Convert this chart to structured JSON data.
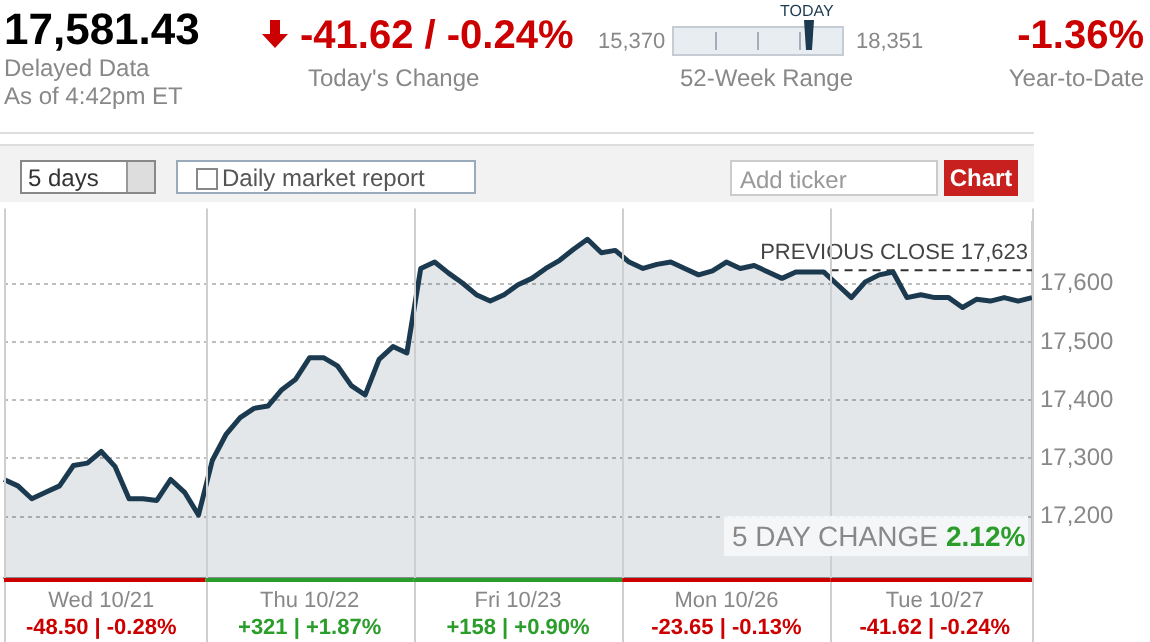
{
  "chart_data": {
    "type": "area",
    "categories": [
      null,
      null,
      null,
      null,
      null,
      null,
      null,
      "Wed 10/21",
      null,
      null,
      null,
      null,
      null,
      null,
      null,
      null,
      null,
      null,
      null,
      null,
      null,
      null,
      "Thu 10/22",
      null,
      null,
      null,
      null,
      null,
      null,
      null,
      null,
      null,
      null,
      null,
      null,
      null,
      null,
      "Fri 10/23",
      null,
      null,
      null,
      null,
      null,
      null,
      null,
      null,
      null,
      null,
      null,
      null,
      null,
      null,
      "Mon 10/26",
      null,
      null,
      null,
      null,
      null,
      null,
      null,
      null,
      null,
      null,
      null,
      null,
      null,
      null,
      "Tue 10/27",
      null,
      null,
      null,
      null,
      null,
      null,
      null
    ],
    "series": [
      {
        "color": "#1c3a4f",
        "values": [
          17264,
          17253,
          17231,
          17242,
          17253,
          17288,
          17292,
          17312,
          17286,
          17231,
          17231,
          17228,
          17264,
          17242,
          17203,
          17297,
          17342,
          17370,
          17386,
          17390,
          17418,
          17436,
          17473,
          17473,
          17459,
          17425,
          17409,
          17470,
          17492,
          17481,
          17626,
          17637,
          17618,
          17601,
          17581,
          17570,
          17581,
          17598,
          17609,
          17626,
          17640,
          17659,
          17676,
          17653,
          17657,
          17637,
          17626,
          17633,
          17637,
          17626,
          17615,
          17622,
          17637,
          17626,
          17631,
          17620,
          17609,
          17620,
          17620,
          17620,
          17598,
          17576,
          17603,
          17615,
          17620,
          17576,
          17581,
          17576,
          17576,
          17559,
          17573,
          17570,
          17576,
          17570,
          17576
        ]
      }
    ],
    "ylim": [
      17095,
      17705
    ],
    "yticks": [
      {
        "value": 17200,
        "label": "17,200"
      },
      {
        "value": 17300,
        "label": "17,300"
      },
      {
        "value": 17400,
        "label": "17,400"
      },
      {
        "value": 17500,
        "label": "17,500"
      },
      {
        "value": 17600,
        "label": "17,600"
      }
    ],
    "grid": "y",
    "legend": false,
    "marker": "none",
    "line_style": "solid",
    "ref_lines": [
      {
        "axis": "y",
        "value": 17623,
        "label": "PREVIOUS CLOSE 17,623",
        "line_style": "dashed",
        "color": "#333333"
      }
    ],
    "annotations": [
      "17,581.43",
      "Delayed Data",
      "As of 4:42pm ET",
      "-41.62 / -0.24%",
      "Today's Change",
      "15,370",
      "TODAY",
      "18,351",
      "52-Week Range",
      "-1.36%",
      "Year-to-Date",
      "5 days",
      "Daily market report",
      "Add ticker",
      "Chart",
      "5 DAY CHANGE",
      "2.12%",
      "-48.50 | -0.28%",
      "+321 | +1.87%",
      "+158 | +0.90%",
      "-23.65 | -0.13%",
      "-41.62 | -0.24%"
    ]
  }
}
